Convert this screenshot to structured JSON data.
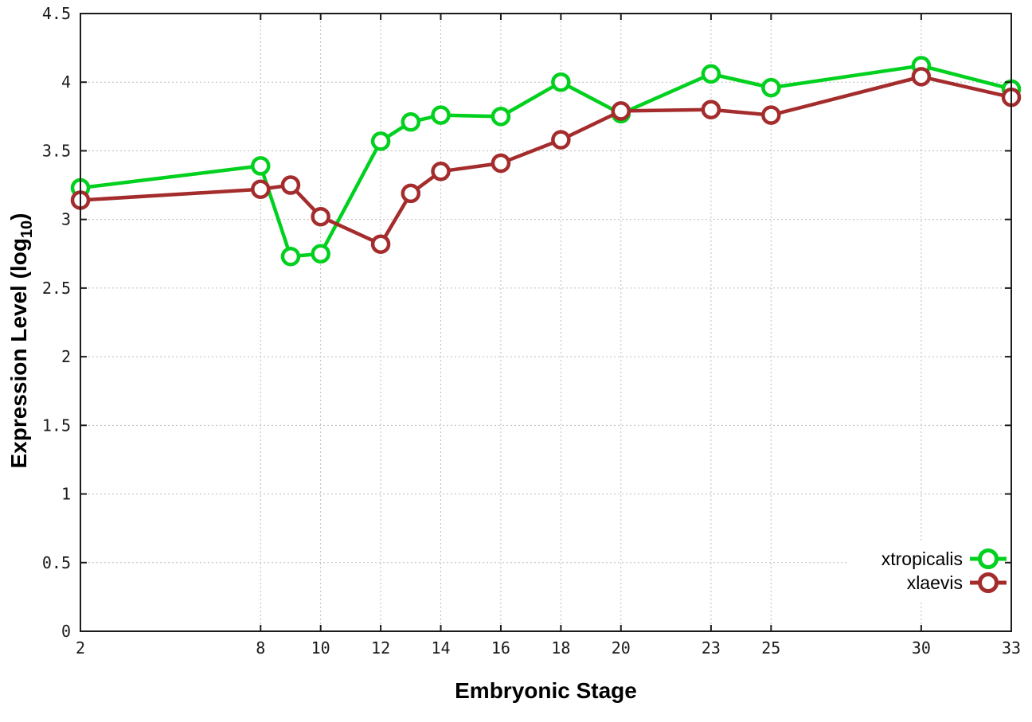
{
  "chart_data": {
    "type": "line",
    "title": "",
    "xlabel": "Embryonic Stage",
    "ylabel": "Expression Level (log10)",
    "ylabel_main": "Expression Level (log",
    "ylabel_sub": "10",
    "ylabel_end": ")",
    "x": [
      2,
      8,
      9,
      10,
      12,
      13,
      14,
      16,
      18,
      20,
      23,
      25,
      30,
      33
    ],
    "x_ticks": [
      2,
      8,
      10,
      12,
      14,
      16,
      18,
      20,
      23,
      25,
      30,
      33
    ],
    "y_ticks": [
      0,
      0.5,
      1,
      1.5,
      2,
      2.5,
      3,
      3.5,
      4,
      4.5
    ],
    "xlim": [
      2,
      33
    ],
    "ylim": [
      0,
      4.5
    ],
    "grid": true,
    "legend_position": "bottom-right-inside",
    "series": [
      {
        "name": "xtropicalis",
        "color": "#00d01e",
        "values": [
          3.23,
          3.39,
          2.73,
          2.75,
          3.57,
          3.71,
          3.76,
          3.75,
          4.0,
          3.77,
          4.06,
          3.96,
          4.12,
          3.95
        ]
      },
      {
        "name": "xlaevis",
        "color": "#a42c2c",
        "values": [
          3.14,
          3.22,
          3.25,
          3.02,
          2.82,
          3.19,
          3.35,
          3.41,
          3.58,
          3.79,
          3.8,
          3.76,
          4.04,
          3.89
        ]
      }
    ],
    "colors": {
      "axis": "#1c1c1c",
      "grid": "#bcbcbc",
      "background": "#ffffff",
      "tick_label": "#1a1a1a"
    }
  }
}
